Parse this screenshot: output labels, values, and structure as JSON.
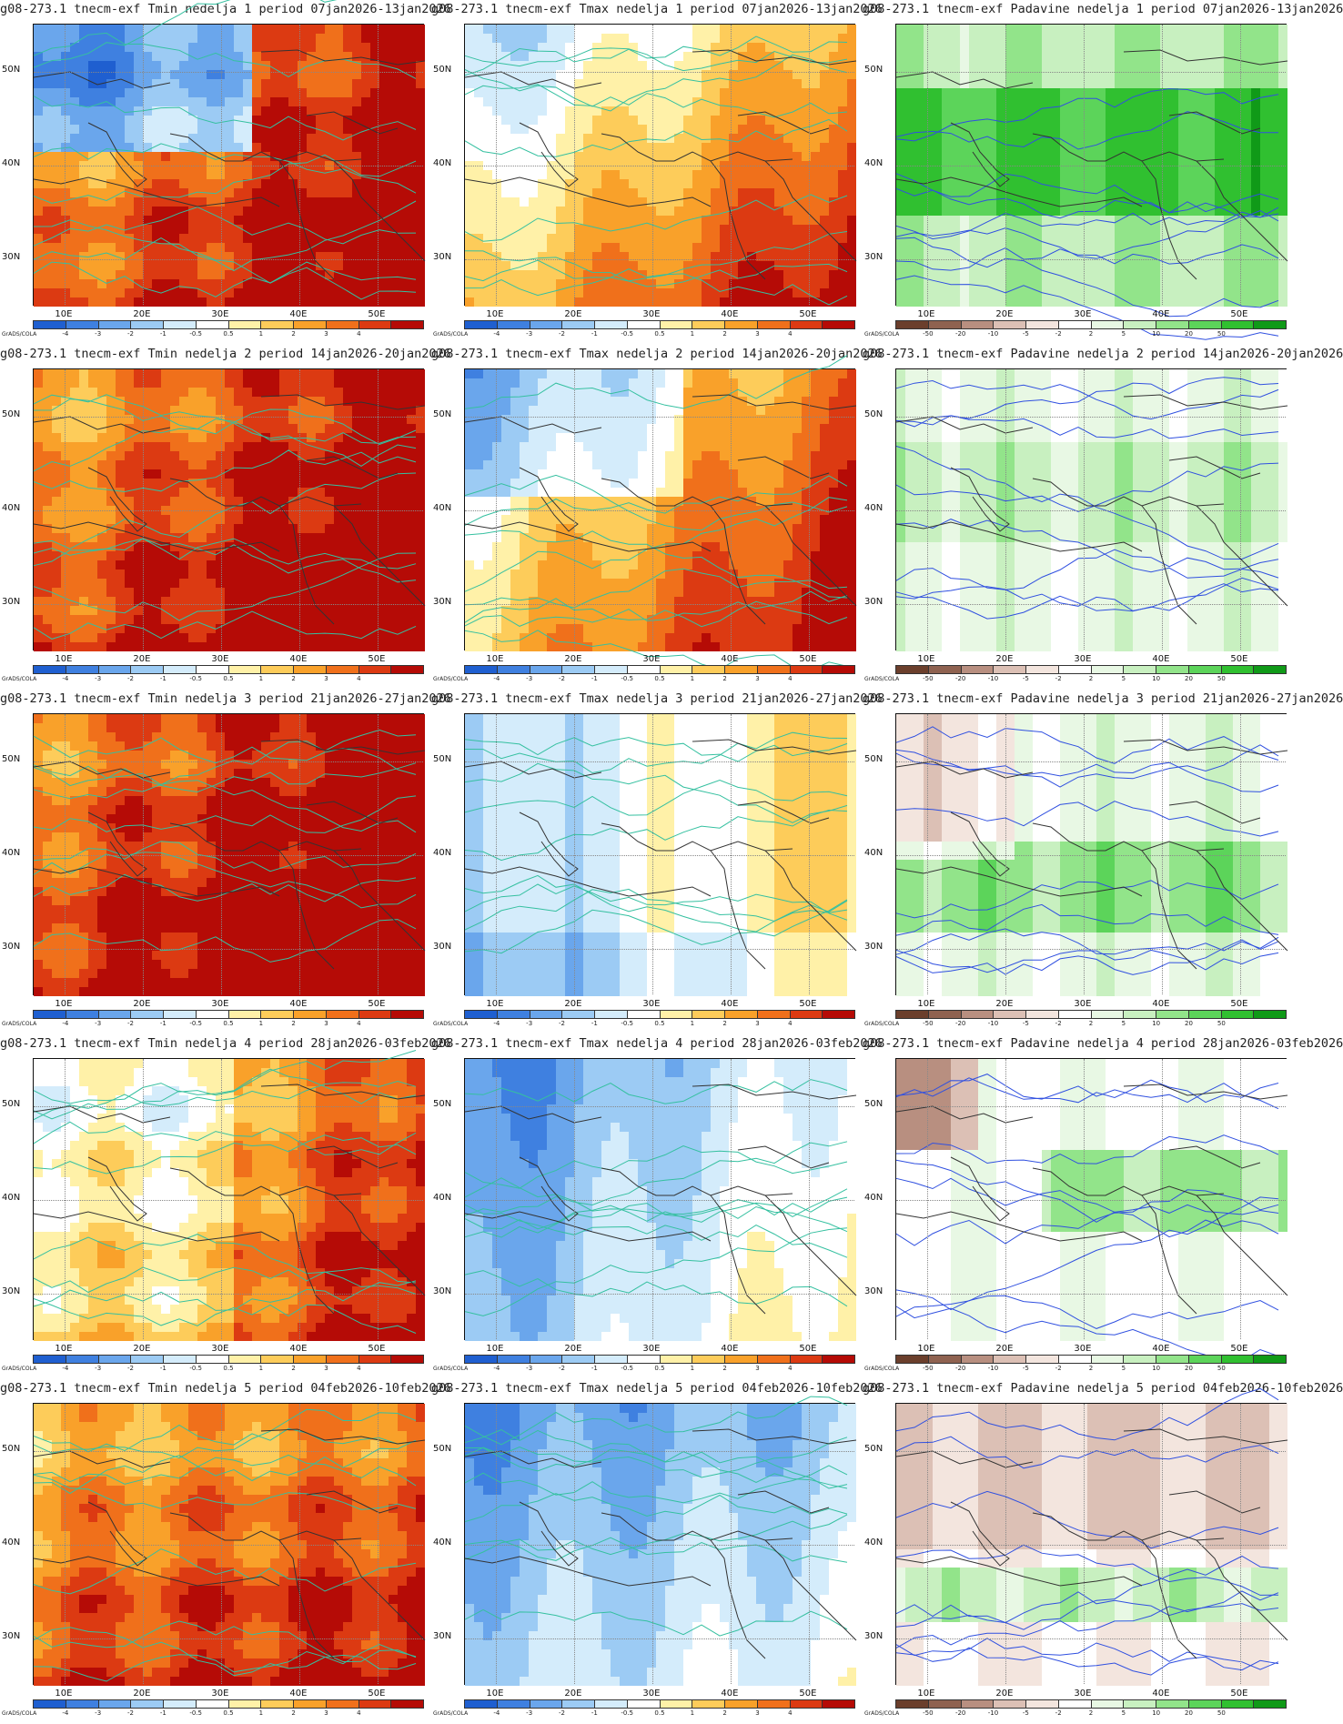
{
  "panels": [
    {
      "title": "g08-273.1 tnecm-exf Tmin nedelja 1 period 07jan2026-13jan2026",
      "var": "tmin",
      "week": 1
    },
    {
      "title": "g08-273.1 tnecm-exf Tmax nedelja 1 period 07jan2026-13jan2026",
      "var": "tmax",
      "week": 1
    },
    {
      "title": "g08-273.1 tnecm-exf Padavine nedelja 1 period 07jan2026-13jan2026",
      "var": "prec",
      "week": 1
    },
    {
      "title": "g08-273.1 tnecm-exf Tmin nedelja 2 period 14jan2026-20jan2026",
      "var": "tmin",
      "week": 2
    },
    {
      "title": "g08-273.1 tnecm-exf Tmax nedelja 2 period 14jan2026-20jan2026",
      "var": "tmax",
      "week": 2
    },
    {
      "title": "g08-273.1 tnecm-exf Padavine nedelja 2 period 14jan2026-20jan2026",
      "var": "prec",
      "week": 2
    },
    {
      "title": "g08-273.1 tnecm-exf Tmin nedelja 3 period 21jan2026-27jan2026",
      "var": "tmin",
      "week": 3
    },
    {
      "title": "g08-273.1 tnecm-exf Tmax nedelja 3 period 21jan2026-27jan2026",
      "var": "tmax",
      "week": 3
    },
    {
      "title": "g08-273.1 tnecm-exf Padavine nedelja 3 period 21jan2026-27jan2026",
      "var": "prec",
      "week": 3
    },
    {
      "title": "g08-273.1 tnecm-exf Tmin nedelja 4 period 28jan2026-03feb2026",
      "var": "tmin",
      "week": 4
    },
    {
      "title": "g08-273.1 tnecm-exf Tmax nedelja 4 period 28jan2026-03feb2026",
      "var": "tmax",
      "week": 4
    },
    {
      "title": "g08-273.1 tnecm-exf Padavine nedelja 4 period 28jan2026-03feb2026",
      "var": "prec",
      "week": 4
    },
    {
      "title": "g08-273.1 tnecm-exf Tmin nedelja 5 period 04feb2026-10feb2026",
      "var": "tmin",
      "week": 5
    },
    {
      "title": "g08-273.1 tnecm-exf Tmax nedelja 5 period 04feb2026-10feb2026",
      "var": "tmax",
      "week": 5
    },
    {
      "title": "g08-273.1 tnecm-exf Padavine nedelja 5 period 04feb2026-10feb2026",
      "var": "prec",
      "week": 5
    }
  ],
  "axes": {
    "lon_labels": [
      "10E",
      "20E",
      "30E",
      "40E",
      "50E"
    ],
    "lat_labels": [
      "50N",
      "40N",
      "30N"
    ]
  },
  "colorbars": {
    "temperature": {
      "colors": [
        "#1f5fd0",
        "#3f80e0",
        "#6aa6ec",
        "#9ccbf4",
        "#d4ecfb",
        "#ffffff",
        "#fff1a8",
        "#fdcc5a",
        "#f9a12a",
        "#f0701b",
        "#dc3a12",
        "#b50b06"
      ],
      "tick_labels": [
        "-4",
        "-3",
        "-2",
        "-1",
        "-0.5",
        "0.5",
        "1",
        "2",
        "3",
        "4"
      ]
    },
    "precipitation": {
      "colors": [
        "#6b3f2c",
        "#8f6250",
        "#b88f80",
        "#dcc0b5",
        "#f3e5de",
        "#ffffff",
        "#e8f8e4",
        "#c8f0c0",
        "#92e48a",
        "#5cd45a",
        "#30c030",
        "#109a18"
      ],
      "tick_labels": [
        "-50",
        "-20",
        "-10",
        "-5",
        "-2",
        "2",
        "5",
        "10",
        "20",
        "50"
      ]
    }
  },
  "credit": "GrADS/COLA",
  "map_colors": {
    "contour_temp": "#35c0a0",
    "contour_prec": "#3050e0",
    "border": "#333333",
    "grid": "#888888"
  }
}
